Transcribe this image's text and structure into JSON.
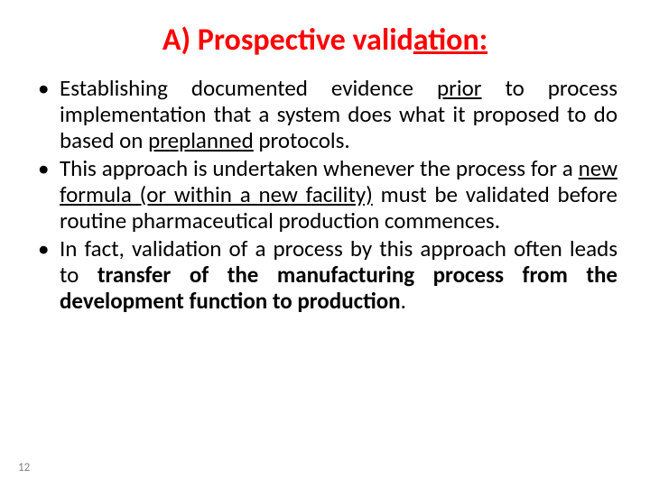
{
  "title": {
    "prefix": "A) Prospective valid",
    "underlined": "ation:",
    "color": "#ff0000",
    "fontsize": 34,
    "fontweight": 700
  },
  "typography": {
    "body_fontsize": 25,
    "body_color": "#000000",
    "line_height": 1.16,
    "align": "justify",
    "bullet_char": "•"
  },
  "background_color": "#ffffff",
  "bullets": [
    {
      "runs": [
        {
          "t": "Establishing documented evidence "
        },
        {
          "t": "prior",
          "u": true
        },
        {
          "t": " to process implementation that a system does what it proposed to do based on "
        },
        {
          "t": "preplanned",
          "u": true
        },
        {
          "t": " protocols."
        }
      ]
    },
    {
      "runs": [
        {
          "t": "This approach is undertaken whenever the process for a "
        },
        {
          "t": "new formula (or within a new facility)",
          "u": true
        },
        {
          "t": " must be validated before routine pharmaceutical production commences."
        }
      ]
    },
    {
      "runs": [
        {
          "t": "In fact, validation of a process by this approach often leads to "
        },
        {
          "t": "transfer of the manufacturing process from the development function to production",
          "b": true
        },
        {
          "t": "."
        }
      ]
    }
  ],
  "page_number": "12",
  "page_number_color": "#808080",
  "page_number_fontsize": 13
}
